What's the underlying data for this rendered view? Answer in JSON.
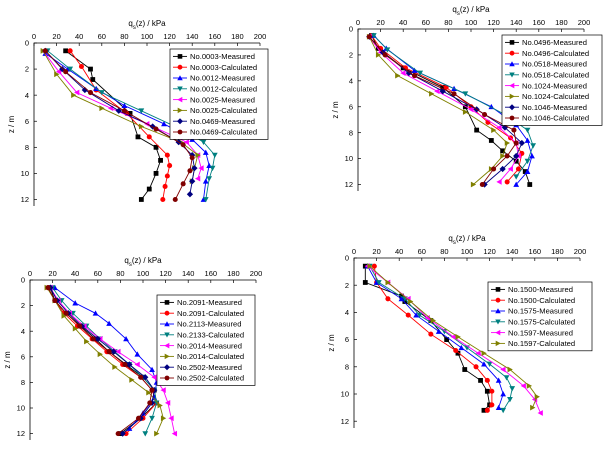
{
  "chart_data": [
    {
      "type": "line",
      "xlabel": "q_s(z) / kPa",
      "ylabel": "z / m",
      "xlim": [
        0,
        200
      ],
      "ylim": [
        0,
        12.5
      ],
      "xticks": [
        0,
        20,
        40,
        60,
        80,
        100,
        120,
        140,
        160,
        180,
        200
      ],
      "yticks": [
        0,
        2,
        4,
        6,
        8,
        10,
        12
      ],
      "y_inverted": true,
      "grid": false,
      "legend": "top-right",
      "series": [
        {
          "name": "No.0003-Measured",
          "color": "#000000",
          "marker": "square",
          "x": [
            28,
            50,
            52,
            85,
            92,
            108,
            112,
            108,
            102,
            95
          ],
          "y": [
            0.6,
            2.0,
            2.8,
            5.4,
            7.2,
            8.0,
            9.0,
            10.0,
            11.2,
            12.0
          ]
        },
        {
          "name": "No.0003-Calculated",
          "color": "#ff0000",
          "marker": "circle",
          "x": [
            32,
            42,
            55,
            82,
            102,
            118,
            120,
            118,
            116,
            114
          ],
          "y": [
            0.6,
            1.8,
            3.6,
            5.4,
            7.2,
            8.6,
            9.4,
            10.2,
            11.0,
            12.0
          ]
        },
        {
          "name": "No.0012-Measured",
          "color": "#0000ff",
          "marker": "triangle-up",
          "x": [
            10,
            30,
            55,
            80,
            115,
            140,
            152,
            155,
            152,
            150
          ],
          "y": [
            0.8,
            2.0,
            3.5,
            4.8,
            6.2,
            7.4,
            8.4,
            9.4,
            10.6,
            12.0
          ]
        },
        {
          "name": "No.0012-Calculated",
          "color": "#008080",
          "marker": "triangle-down",
          "x": [
            12,
            32,
            60,
            95,
            130,
            150,
            160,
            158,
            155,
            152
          ],
          "y": [
            0.6,
            2.0,
            3.8,
            5.2,
            6.6,
            7.6,
            8.6,
            9.6,
            10.4,
            12.0
          ]
        },
        {
          "name": "No.0025-Measured",
          "color": "#ff00ff",
          "marker": "triangle-left",
          "x": [
            8,
            22,
            38,
            68,
            100,
            135,
            145,
            148,
            145
          ],
          "y": [
            0.6,
            2.2,
            3.8,
            5.0,
            6.2,
            7.6,
            8.6,
            9.6,
            10.4
          ]
        },
        {
          "name": "No.0025-Calculated",
          "color": "#808000",
          "marker": "triangle-right",
          "x": [
            8,
            20,
            35,
            60,
            95,
            130,
            145,
            142,
            140
          ],
          "y": [
            0.6,
            2.4,
            4.0,
            5.0,
            6.4,
            7.6,
            8.6,
            9.6,
            10.6
          ]
        },
        {
          "name": "No.0469-Measured",
          "color": "#000080",
          "marker": "diamond",
          "x": [
            10,
            25,
            45,
            75,
            105,
            128,
            140,
            142,
            140,
            138
          ],
          "y": [
            0.6,
            2.0,
            3.6,
            5.2,
            6.4,
            7.6,
            8.6,
            9.6,
            10.6,
            11.6
          ]
        },
        {
          "name": "No.0469-Calculated",
          "color": "#800000",
          "marker": "circle",
          "x": [
            10,
            28,
            50,
            80,
            108,
            132,
            140,
            138,
            132,
            125
          ],
          "y": [
            0.6,
            2.2,
            3.8,
            5.2,
            6.6,
            7.8,
            8.8,
            9.8,
            10.8,
            12.0
          ]
        }
      ]
    },
    {
      "type": "line",
      "xlabel": "q_s(z) / kPa",
      "ylabel": "z / m",
      "xlim": [
        0,
        200
      ],
      "ylim": [
        0,
        12.5
      ],
      "xticks": [
        0,
        20,
        40,
        60,
        80,
        100,
        120,
        140,
        160,
        180,
        200
      ],
      "yticks": [
        0,
        2,
        4,
        6,
        8,
        10,
        12
      ],
      "y_inverted": true,
      "grid": false,
      "legend": "top-right",
      "series": [
        {
          "name": "No.0496-Measured",
          "color": "#000000",
          "marker": "square",
          "x": [
            12,
            18,
            40,
            75,
            95,
            105,
            118,
            128,
            140,
            148,
            152
          ],
          "y": [
            0.5,
            1.5,
            3.0,
            4.5,
            6.0,
            7.8,
            8.6,
            9.4,
            10.2,
            11.0,
            12.0
          ]
        },
        {
          "name": "No.0496-Calculated",
          "color": "#ff0000",
          "marker": "circle",
          "x": [
            12,
            20,
            42,
            78,
            100,
            115,
            135,
            145,
            142,
            132
          ],
          "y": [
            0.5,
            1.5,
            3.0,
            4.5,
            6.0,
            7.2,
            8.4,
            9.6,
            10.8,
            11.8
          ]
        },
        {
          "name": "No.0518-Measured",
          "color": "#0000ff",
          "marker": "triangle-up",
          "x": [
            14,
            25,
            50,
            85,
            118,
            140,
            150,
            154,
            150,
            140
          ],
          "y": [
            0.5,
            1.5,
            3.2,
            4.6,
            6.0,
            7.4,
            8.6,
            9.8,
            11.0,
            12.0
          ]
        },
        {
          "name": "No.0518-Calculated",
          "color": "#008080",
          "marker": "triangle-down",
          "x": [
            14,
            26,
            55,
            95,
            130,
            150,
            155,
            150,
            140
          ],
          "y": [
            0.5,
            1.6,
            3.4,
            5.0,
            6.6,
            7.8,
            9.0,
            10.2,
            11.4
          ]
        },
        {
          "name": "No.1024-Measured",
          "color": "#ff00ff",
          "marker": "triangle-left",
          "x": [
            10,
            20,
            40,
            70,
            100,
            125,
            140,
            142,
            135,
            125
          ],
          "y": [
            0.6,
            1.8,
            3.4,
            4.8,
            6.2,
            7.6,
            8.8,
            9.8,
            10.8,
            11.8
          ]
        },
        {
          "name": "No.1024-Calculated",
          "color": "#808000",
          "marker": "triangle-right",
          "x": [
            10,
            18,
            35,
            65,
            95,
            120,
            132,
            128,
            118,
            102
          ],
          "y": [
            0.6,
            2.0,
            3.6,
            5.0,
            6.4,
            7.8,
            8.8,
            9.8,
            10.8,
            12.0
          ]
        },
        {
          "name": "No.1046-Measured",
          "color": "#000080",
          "marker": "diamond",
          "x": [
            10,
            22,
            45,
            75,
            105,
            130,
            145,
            140,
            128,
            112
          ],
          "y": [
            0.6,
            1.8,
            3.4,
            4.8,
            6.2,
            7.6,
            8.8,
            9.8,
            10.8,
            12.0
          ]
        },
        {
          "name": "No.1046-Calculated",
          "color": "#800000",
          "marker": "circle",
          "x": [
            10,
            24,
            50,
            85,
            112,
            138,
            140,
            132,
            120,
            110
          ],
          "y": [
            0.6,
            2.0,
            3.6,
            5.0,
            6.6,
            7.8,
            8.8,
            9.8,
            10.8,
            12.0
          ]
        }
      ]
    },
    {
      "type": "line",
      "xlabel": "q_s(z) / kPa",
      "ylabel": "z / m",
      "xlim": [
        0,
        200
      ],
      "ylim": [
        0,
        12.5
      ],
      "xticks": [
        0,
        20,
        40,
        60,
        80,
        100,
        120,
        140,
        160,
        180,
        200
      ],
      "yticks": [
        0,
        2,
        4,
        6,
        8,
        10,
        12
      ],
      "y_inverted": true,
      "grid": false,
      "legend": "top-right",
      "series": [
        {
          "name": "No.2091-Measured",
          "color": "#000000",
          "marker": "square",
          "x": [
            18,
            22,
            32,
            45,
            58,
            70,
            85,
            100,
            110,
            112,
            98,
            80
          ],
          "y": [
            0.6,
            1.6,
            2.6,
            3.6,
            4.6,
            5.6,
            6.6,
            7.6,
            8.6,
            9.6,
            10.8,
            12.0
          ]
        },
        {
          "name": "No.2091-Calculated",
          "color": "#ff0000",
          "marker": "circle",
          "x": [
            16,
            22,
            30,
            42,
            55,
            68,
            82,
            98,
            108,
            112,
            100,
            85
          ],
          "y": [
            0.6,
            1.6,
            2.6,
            3.6,
            4.6,
            5.6,
            6.6,
            7.6,
            8.6,
            9.6,
            10.8,
            12.0
          ]
        },
        {
          "name": "No.2113-Measured",
          "color": "#0000ff",
          "marker": "triangle-up",
          "x": [
            22,
            40,
            58,
            70,
            85,
            95,
            108,
            112,
            110,
            100,
            88
          ],
          "y": [
            0.6,
            1.8,
            2.6,
            3.4,
            4.6,
            5.8,
            7.0,
            8.0,
            9.2,
            10.4,
            11.6
          ]
        },
        {
          "name": "No.2133-Calculated",
          "color": "#008080",
          "marker": "triangle-down",
          "x": [
            20,
            28,
            38,
            50,
            62,
            75,
            88,
            100,
            110,
            112,
            108,
            102
          ],
          "y": [
            0.6,
            1.6,
            2.6,
            3.6,
            4.6,
            5.6,
            6.6,
            7.6,
            8.6,
            9.6,
            10.8,
            12.0
          ]
        },
        {
          "name": "No.2014-Measured",
          "color": "#ff00ff",
          "marker": "triangle-left",
          "x": [
            18,
            25,
            35,
            48,
            62,
            78,
            95,
            110,
            118,
            122,
            125,
            128
          ],
          "y": [
            0.6,
            1.6,
            2.6,
            3.6,
            4.6,
            5.6,
            6.6,
            7.6,
            8.6,
            9.6,
            10.8,
            12.0
          ]
        },
        {
          "name": "No.2014-Calculated",
          "color": "#808000",
          "marker": "triangle-right",
          "x": [
            15,
            22,
            30,
            40,
            50,
            62,
            75,
            90,
            105,
            115,
            118,
            112
          ],
          "y": [
            0.6,
            1.6,
            2.8,
            3.8,
            4.8,
            5.8,
            6.8,
            7.8,
            8.8,
            9.8,
            10.8,
            12.0
          ]
        },
        {
          "name": "No.2502-Measured",
          "color": "#000080",
          "marker": "diamond",
          "x": [
            18,
            24,
            34,
            46,
            60,
            74,
            88,
            102,
            110,
            108,
            98,
            82
          ],
          "y": [
            0.6,
            1.6,
            2.6,
            3.6,
            4.6,
            5.6,
            6.6,
            7.6,
            8.6,
            9.6,
            10.8,
            12.0
          ]
        },
        {
          "name": "No.2502-Calculated",
          "color": "#800000",
          "marker": "circle",
          "x": [
            16,
            22,
            32,
            44,
            56,
            70,
            84,
            98,
            108,
            106,
            96,
            78
          ],
          "y": [
            0.6,
            1.6,
            2.6,
            3.6,
            4.6,
            5.6,
            6.6,
            7.6,
            8.6,
            9.6,
            10.8,
            12.0
          ]
        }
      ]
    },
    {
      "type": "line",
      "xlabel": "q_s(z) / kPa",
      "ylabel": "z / m",
      "xlim": [
        0,
        200
      ],
      "ylim": [
        0,
        12.5
      ],
      "xticks": [
        0,
        20,
        40,
        60,
        80,
        100,
        120,
        140,
        160,
        180,
        200
      ],
      "yticks": [
        0,
        2,
        4,
        6,
        8,
        10,
        12
      ],
      "y_inverted": true,
      "grid": false,
      "legend": "top-right",
      "series": [
        {
          "name": "No.1500-Measured",
          "color": "#000000",
          "marker": "square",
          "x": [
            10,
            10,
            42,
            45,
            68,
            82,
            92,
            98,
            112,
            118,
            120,
            115
          ],
          "y": [
            0.6,
            1.8,
            2.8,
            3.2,
            4.6,
            6.0,
            7.0,
            8.2,
            9.0,
            9.8,
            10.8,
            11.2
          ]
        },
        {
          "name": "No.1500-Calculated",
          "color": "#ff0000",
          "marker": "circle",
          "x": [
            18,
            20,
            30,
            48,
            68,
            90,
            108,
            118,
            122,
            122,
            118
          ],
          "y": [
            0.6,
            1.8,
            3.0,
            4.2,
            5.6,
            6.8,
            8.0,
            9.0,
            9.8,
            10.8,
            11.2
          ]
        },
        {
          "name": "No.1575-Measured",
          "color": "#0000ff",
          "marker": "triangle-up",
          "x": [
            12,
            20,
            42,
            55,
            75,
            95,
            115,
            128,
            132,
            128
          ],
          "y": [
            0.6,
            1.8,
            3.0,
            4.2,
            5.4,
            6.6,
            7.8,
            9.0,
            10.0,
            11.0
          ]
        },
        {
          "name": "No.1575-Calculated",
          "color": "#008080",
          "marker": "triangle-down",
          "x": [
            14,
            22,
            45,
            58,
            80,
            100,
            120,
            135,
            140,
            138,
            132
          ],
          "y": [
            0.6,
            1.8,
            3.0,
            4.2,
            5.4,
            6.6,
            7.8,
            8.8,
            9.6,
            10.4,
            11.2
          ]
        },
        {
          "name": "No.1597-Measured",
          "color": "#ff00ff",
          "marker": "triangle-left",
          "x": [
            12,
            30,
            48,
            65,
            88,
            110,
            132,
            150,
            160,
            165
          ],
          "y": [
            0.6,
            1.8,
            3.0,
            4.4,
            5.8,
            7.0,
            8.2,
            9.4,
            10.4,
            11.4
          ]
        },
        {
          "name": "No.1597-Calculated",
          "color": "#808000",
          "marker": "triangle-right",
          "x": [
            14,
            30,
            50,
            70,
            92,
            115,
            138,
            155,
            162,
            158
          ],
          "y": [
            0.6,
            1.8,
            3.2,
            4.6,
            5.8,
            7.0,
            8.2,
            9.4,
            10.2,
            11.0
          ]
        }
      ]
    }
  ]
}
